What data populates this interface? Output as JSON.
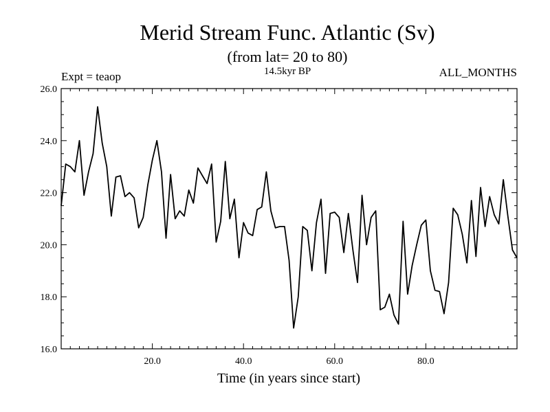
{
  "header": {
    "title": "Merid Stream Func. Atlantic (Sv)",
    "subtitle": "(from lat= 20 to 80)",
    "left_note": "Expt = teaop",
    "center_note": "14.5kyr BP",
    "right_note": "ALL_MONTHS"
  },
  "chart_data": {
    "type": "line",
    "title": "Merid Stream Func. Atlantic (Sv)",
    "subtitle": "(from lat= 20 to 80)",
    "xlabel": "Time (in years since start)",
    "ylabel": "",
    "xlim": [
      0,
      100
    ],
    "ylim": [
      16.0,
      26.0
    ],
    "x_ticks": [
      20,
      40,
      60,
      80
    ],
    "x_tick_labels": [
      "20.0",
      "40.0",
      "60.0",
      "80.0"
    ],
    "y_ticks": [
      16,
      18,
      20,
      22,
      24,
      26
    ],
    "y_tick_labels": [
      "16.0",
      "18.0",
      "20.0",
      "22.0",
      "24.0",
      "26.0"
    ],
    "grid": false,
    "series": [
      {
        "name": "Merid Stream Func. Atlantic",
        "x": [
          0,
          1,
          2,
          3,
          4,
          5,
          6,
          7,
          8,
          9,
          10,
          11,
          12,
          13,
          14,
          15,
          16,
          17,
          18,
          19,
          20,
          21,
          22,
          23,
          24,
          25,
          26,
          27,
          28,
          29,
          30,
          31,
          32,
          33,
          34,
          35,
          36,
          37,
          38,
          39,
          40,
          41,
          42,
          43,
          44,
          45,
          46,
          47,
          48,
          49,
          50,
          51,
          52,
          53,
          54,
          55,
          56,
          57,
          58,
          59,
          60,
          61,
          62,
          63,
          64,
          65,
          66,
          67,
          68,
          69,
          70,
          71,
          72,
          73,
          74,
          75,
          76,
          77,
          78,
          79,
          80,
          81,
          82,
          83,
          84,
          85,
          86,
          87,
          88,
          89,
          90,
          91,
          92,
          93,
          94,
          95,
          96,
          97,
          98,
          99,
          100
        ],
        "values": [
          21.5,
          23.1,
          23.0,
          22.8,
          24.0,
          21.9,
          22.8,
          23.5,
          25.3,
          23.9,
          23.0,
          21.1,
          22.6,
          22.65,
          21.85,
          22.0,
          21.8,
          20.65,
          21.05,
          22.3,
          23.25,
          24.0,
          22.8,
          20.25,
          22.7,
          21.0,
          21.3,
          21.1,
          22.1,
          21.6,
          22.95,
          22.65,
          22.35,
          23.1,
          20.1,
          20.9,
          23.2,
          21.0,
          21.75,
          19.5,
          20.85,
          20.45,
          20.35,
          21.35,
          21.45,
          22.8,
          21.3,
          20.65,
          20.7,
          20.7,
          19.4,
          16.8,
          18.0,
          20.7,
          20.55,
          19.0,
          20.85,
          21.75,
          18.9,
          21.2,
          21.25,
          21.05,
          19.7,
          21.2,
          19.8,
          18.55,
          21.9,
          20.0,
          21.05,
          21.3,
          17.5,
          17.6,
          18.1,
          17.3,
          16.95,
          20.9,
          18.1,
          19.2,
          20.0,
          20.75,
          20.95,
          19.0,
          18.25,
          18.2,
          17.35,
          18.55,
          21.4,
          21.15,
          20.4,
          19.3,
          21.7,
          19.55,
          22.2,
          20.7,
          21.85,
          21.15,
          20.8,
          22.5,
          21.1,
          19.8,
          19.5
        ]
      }
    ]
  }
}
